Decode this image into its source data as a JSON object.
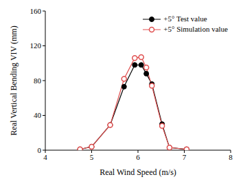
{
  "chart_data": {
    "type": "line",
    "x_label": "Real Wind Speed (m/s)",
    "y_label": "Real Vertical Bending VIV (mm)",
    "x": [
      4.75,
      5.0,
      5.4,
      5.7,
      5.93,
      6.07,
      6.18,
      6.3,
      6.52,
      6.68,
      7.05
    ],
    "series": [
      {
        "name": "+5° Test value",
        "color": "#000000",
        "marker": "circle",
        "values": [
          1,
          4,
          29,
          73,
          98,
          98,
          88,
          76,
          30,
          3,
          1
        ]
      },
      {
        "name": "+5° Simulation value",
        "color": "#e05050",
        "marker": "open_circle",
        "values": [
          1,
          4,
          29,
          82,
          106,
          107,
          95,
          74,
          28,
          3,
          1
        ]
      }
    ],
    "xlim": [
      4,
      8
    ],
    "xticks": [
      4,
      5,
      6,
      7,
      8
    ],
    "ylim": [
      0,
      160
    ],
    "yticks": [
      0,
      40,
      80,
      120,
      160
    ],
    "legend": "upper right"
  }
}
